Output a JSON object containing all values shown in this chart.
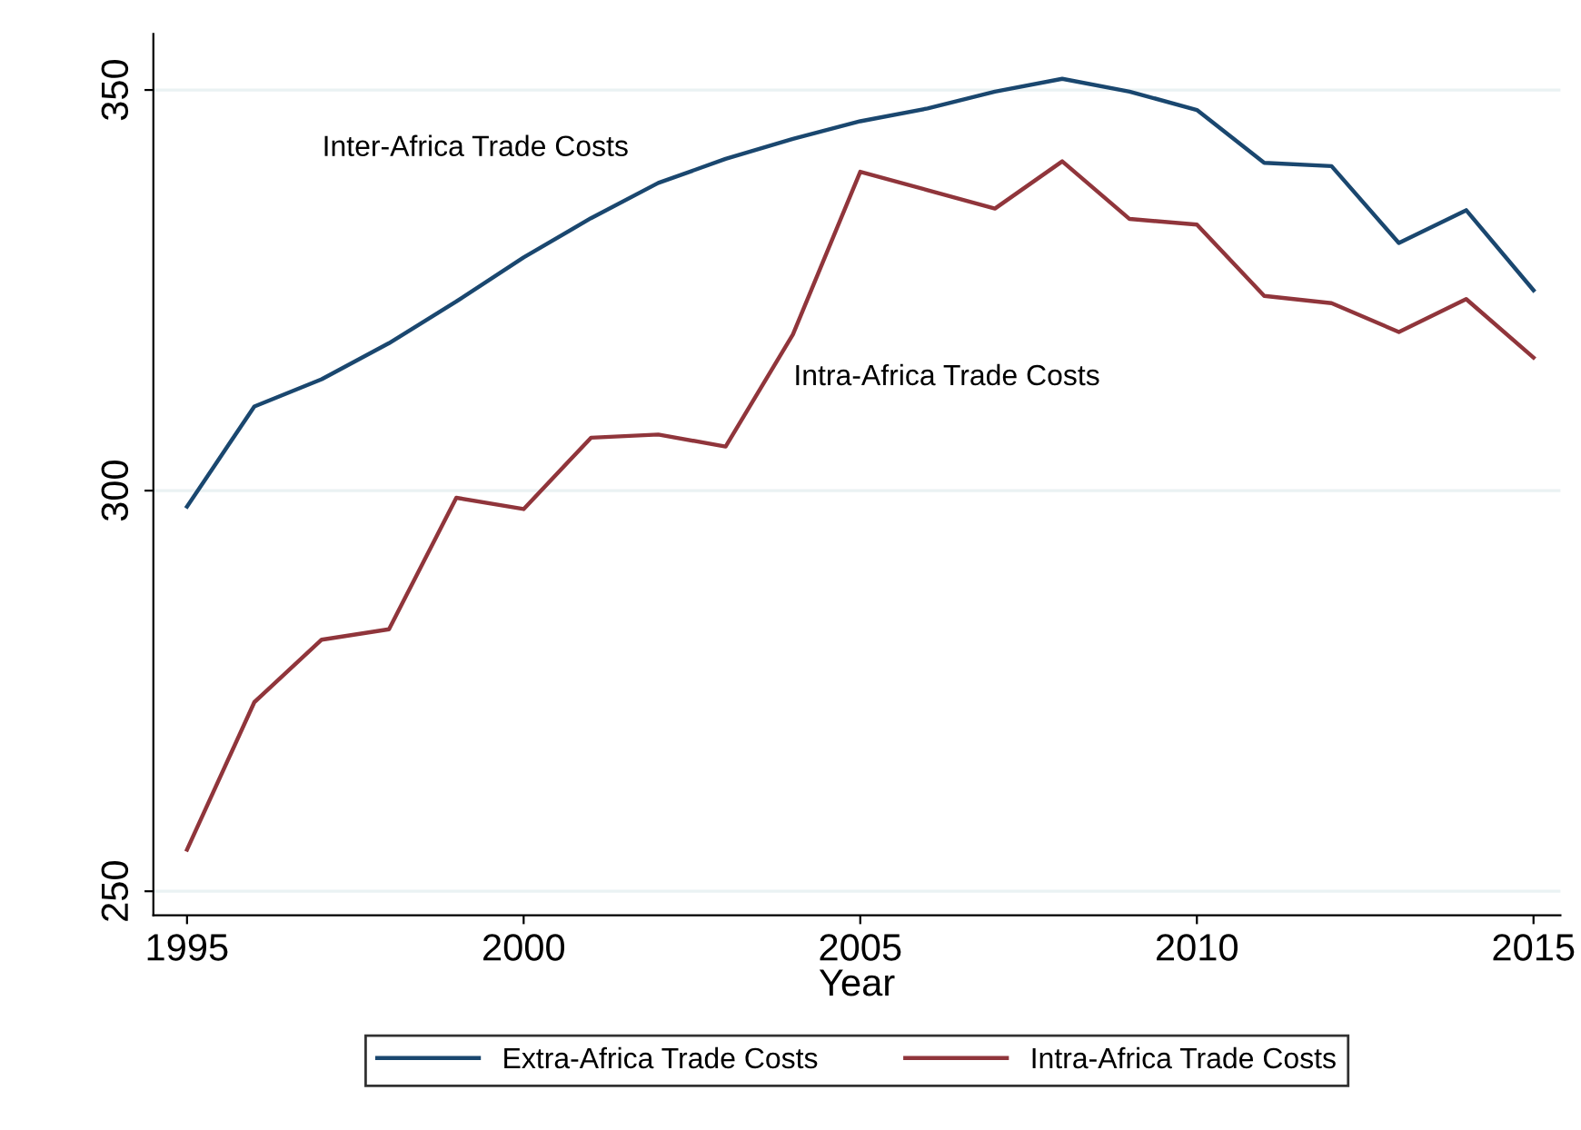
{
  "chart_data": {
    "type": "line",
    "xlabel": "Year",
    "x": [
      1995,
      1996,
      1997,
      1998,
      1999,
      2000,
      2001,
      2002,
      2003,
      2004,
      2005,
      2006,
      2007,
      2008,
      2009,
      2010,
      2011,
      2012,
      2013,
      2014,
      2015
    ],
    "series": [
      {
        "name": "Extra-Africa Trade Costs",
        "color": "#1a476f",
        "values": [
          298,
          310.5,
          313.9,
          318.4,
          323.6,
          329.1,
          334,
          338.4,
          341.4,
          343.9,
          346.1,
          347.7,
          349.8,
          351.4,
          349.8,
          347.5,
          340.9,
          340.5,
          330.9,
          335,
          325
        ]
      },
      {
        "name": "Intra-Africa Trade Costs",
        "color": "#90353b",
        "values": [
          255.2,
          273.6,
          281.4,
          282.7,
          299.1,
          297.7,
          306.6,
          307,
          305.5,
          319.5,
          339.8,
          337.5,
          335.2,
          341.1,
          333.9,
          333.2,
          324.3,
          323.4,
          319.8,
          323.9,
          316.6
        ]
      }
    ],
    "annotations": [
      "Inter-Africa Trade Costs",
      "Intra-Africa Trade Costs"
    ],
    "xlim": [
      1994.5,
      2015.4
    ],
    "xticks": [
      1995,
      2000,
      2005,
      2010,
      2015
    ],
    "ylim": [
      247,
      357
    ],
    "yticks": [
      250,
      300,
      350
    ],
    "grid": "y",
    "legend": "bottom",
    "marker": "none",
    "line_style": "solid"
  }
}
